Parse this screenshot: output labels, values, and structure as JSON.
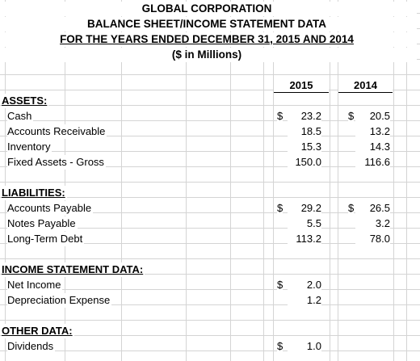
{
  "header": {
    "company": "GLOBAL CORPORATION",
    "title": "BALANCE SHEET/INCOME STATEMENT DATA",
    "period": "FOR THE YEARS ENDED DECEMBER 31, 2015 AND 2014",
    "units": "($ in Millions)"
  },
  "columns": [
    "2015",
    "2014"
  ],
  "currency_symbol": "$",
  "sections": {
    "assets": {
      "title": "ASSETS:",
      "rows": [
        {
          "label": "Cash",
          "y2015": "23.2",
          "y2014": "20.5"
        },
        {
          "label": "Accounts Receivable",
          "y2015": "18.5",
          "y2014": "13.2"
        },
        {
          "label": "Inventory",
          "y2015": "15.3",
          "y2014": "14.3"
        },
        {
          "label": "Fixed Assets - Gross",
          "y2015": "150.0",
          "y2014": "116.6"
        }
      ]
    },
    "liabilities": {
      "title": "LIABILITIES:",
      "rows": [
        {
          "label": "Accounts Payable",
          "y2015": "29.2",
          "y2014": "26.5"
        },
        {
          "label": "Notes Payable",
          "y2015": "5.5",
          "y2014": "3.2"
        },
        {
          "label": "Long-Term Debt",
          "y2015": "113.2",
          "y2014": "78.0"
        }
      ]
    },
    "income": {
      "title": "INCOME STATEMENT DATA:",
      "rows": [
        {
          "label": "Net Income",
          "y2015": "2.0"
        },
        {
          "label": "Depreciation Expense",
          "y2015": "1.2"
        }
      ]
    },
    "other": {
      "title": "OTHER DATA:",
      "rows": [
        {
          "label": "Dividends",
          "y2015": "1.0"
        }
      ]
    }
  }
}
